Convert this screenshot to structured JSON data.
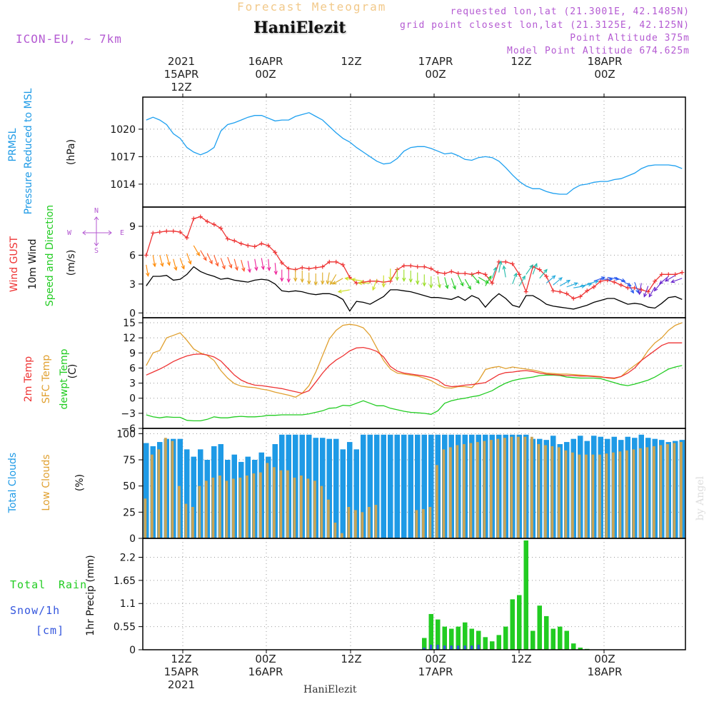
{
  "header": {
    "subtitle": "Forecast Meteogram",
    "station": "HaniElezit",
    "model": "ICON-EU, ~ 7km",
    "requested": "requested lon,lat (21.3001E, 42.1485N)",
    "gridpoint": "grid point closest lon,lat (21.3125E, 42.125N)",
    "point_alt": "Point Altitude 375m",
    "model_alt": "Model Point Altitude 674.625m",
    "footer": "HaniElezit",
    "credit": "by Angel"
  },
  "top_time_labels": [
    {
      "l1": "2021",
      "l2": "15APR",
      "l3": "12Z"
    },
    {
      "l1": "",
      "l2": "16APR",
      "l3": "00Z"
    },
    {
      "l1": "",
      "l2": "",
      "l3": "12Z"
    },
    {
      "l1": "",
      "l2": "17APR",
      "l3": "00Z"
    },
    {
      "l1": "",
      "l2": "",
      "l3": "12Z"
    },
    {
      "l1": "",
      "l2": "18APR",
      "l3": "00Z"
    }
  ],
  "bottom_time_labels": [
    {
      "l1": "12Z",
      "l2": "15APR",
      "l3": "2021"
    },
    {
      "l1": "00Z",
      "l2": "16APR",
      "l3": ""
    },
    {
      "l1": "12Z",
      "l2": "",
      "l3": ""
    },
    {
      "l1": "00Z",
      "l2": "17APR",
      "l3": ""
    },
    {
      "l1": "12Z",
      "l2": "",
      "l3": ""
    },
    {
      "l1": "00Z",
      "l2": "18APR",
      "l3": ""
    }
  ],
  "panel_labels": {
    "prmsl": [
      "PRMSL",
      "Pressure Reduced to MSL",
      "(hPa)"
    ],
    "wind": [
      "Wind GUST",
      "10m Wind",
      "Speed and Direction",
      "(m/s)"
    ],
    "compass": {
      "n": "N",
      "s": "S",
      "w": "W",
      "e": "E"
    },
    "temp": [
      "2m Temp",
      "SFC Temp",
      "dewpt Temp",
      "(C)"
    ],
    "clouds": [
      "Total Clouds",
      "Low Clouds",
      "(%)"
    ],
    "precip": [
      "Total",
      "Rain",
      "Snow/1h",
      "[cm]",
      "1hr Precip (mm)"
    ]
  },
  "colors": {
    "pressure": "#1ea0f0",
    "gust": "#ee3333",
    "wind10m": "#000000",
    "t2m": "#ee3333",
    "tsfc": "#e0a030",
    "dewpt": "#22cc22",
    "total_clouds": "#1e9ae6",
    "low_clouds": "#c8a456",
    "rain": "#22cc22",
    "snow": "#3355dd",
    "label_purple": "#b45ad2",
    "label_blue": "#1e9ae6",
    "label_green": "#22cc22",
    "label_gold": "#e0a030"
  },
  "chart_data": [
    {
      "type": "line",
      "name": "prmsl",
      "x_start": "2021-04-15T06:00Z",
      "x_step_hours": 1,
      "ylim": [
        1011.5,
        1023.5
      ],
      "yticks": [
        1014,
        1017,
        1020
      ],
      "series": [
        {
          "name": "PRMSL",
          "values": [
            1021.0,
            1021.3,
            1021.0,
            1020.5,
            1019.5,
            1019.0,
            1018.0,
            1017.5,
            1017.2,
            1017.5,
            1018.0,
            1019.8,
            1020.5,
            1020.7,
            1021.0,
            1021.3,
            1021.5,
            1021.5,
            1021.2,
            1020.9,
            1021.0,
            1021.0,
            1021.4,
            1021.6,
            1021.8,
            1021.4,
            1021.0,
            1020.3,
            1019.6,
            1019.0,
            1018.6,
            1018.0,
            1017.5,
            1017.0,
            1016.5,
            1016.2,
            1016.3,
            1016.8,
            1017.6,
            1018.0,
            1018.1,
            1018.1,
            1017.9,
            1017.6,
            1017.3,
            1017.4,
            1017.1,
            1016.7,
            1016.6,
            1016.9,
            1017.0,
            1016.9,
            1016.5,
            1015.8,
            1015.0,
            1014.3,
            1013.8,
            1013.5,
            1013.5,
            1013.2,
            1013.0,
            1012.9,
            1012.9,
            1013.5,
            1013.9,
            1014.0,
            1014.2,
            1014.3,
            1014.3,
            1014.5,
            1014.6,
            1014.9,
            1015.2,
            1015.7,
            1016.0,
            1016.1,
            1016.1,
            1016.1,
            1016.0,
            1015.7
          ]
        }
      ]
    },
    {
      "type": "line",
      "name": "wind",
      "x_start": "2021-04-15T06:00Z",
      "x_step_hours": 1,
      "ylim": [
        -0.5,
        11
      ],
      "yticks": [
        0,
        3,
        6,
        9
      ],
      "series": [
        {
          "name": "Wind GUST",
          "values": [
            6.0,
            8.3,
            8.4,
            8.5,
            8.5,
            8.4,
            7.8,
            9.8,
            10.0,
            9.5,
            9.2,
            8.8,
            7.7,
            7.5,
            7.2,
            7.0,
            6.9,
            7.2,
            7.0,
            6.3,
            5.2,
            4.6,
            4.5,
            4.7,
            4.6,
            4.7,
            4.8,
            5.3,
            5.3,
            5.0,
            3.7,
            3.1,
            3.2,
            3.3,
            3.3,
            3.2,
            3.3,
            4.5,
            4.9,
            4.9,
            4.8,
            4.8,
            4.6,
            4.2,
            4.1,
            4.3,
            4.1,
            4.1,
            4.0,
            4.2,
            4.0,
            3.1,
            5.3,
            5.3,
            5.1,
            4.0,
            2.2,
            4.8,
            4.5,
            3.8,
            2.3,
            2.2,
            2.0,
            1.5,
            1.7,
            2.3,
            2.7,
            3.3,
            3.4,
            3.2,
            2.9,
            2.6,
            2.6,
            2.4,
            2.2,
            3.3,
            4.0,
            4.0,
            4.0,
            4.2
          ]
        },
        {
          "name": "10m Wind",
          "values": [
            2.8,
            3.8,
            3.8,
            3.9,
            3.4,
            3.5,
            4.0,
            4.8,
            4.3,
            4.0,
            3.8,
            3.5,
            3.6,
            3.4,
            3.3,
            3.2,
            3.4,
            3.5,
            3.4,
            3.0,
            2.3,
            2.2,
            2.3,
            2.2,
            2.0,
            1.9,
            2.0,
            2.0,
            1.8,
            1.4,
            0.2,
            1.2,
            1.1,
            0.9,
            1.3,
            1.7,
            2.4,
            2.4,
            2.3,
            2.2,
            2.0,
            1.8,
            1.6,
            1.6,
            1.5,
            1.4,
            1.7,
            1.3,
            1.8,
            1.5,
            0.6,
            1.4,
            2.0,
            1.5,
            0.8,
            0.6,
            1.8,
            1.8,
            1.4,
            0.9,
            0.7,
            0.6,
            0.5,
            0.4,
            0.6,
            0.8,
            1.1,
            1.3,
            1.5,
            1.5,
            1.2,
            0.9,
            1.0,
            0.9,
            0.6,
            0.5,
            1.0,
            1.6,
            1.7,
            1.4
          ]
        }
      ],
      "wind_dir_deg": [
        350,
        350,
        345,
        345,
        345,
        340,
        340,
        330,
        330,
        335,
        340,
        340,
        340,
        345,
        345,
        350,
        350,
        350,
        355,
        355,
        0,
        0,
        0,
        0,
        0,
        0,
        0,
        10,
        30,
        60,
        80,
        100,
        100,
        90,
        20,
        0,
        0,
        0,
        0,
        0,
        0,
        0,
        0,
        350,
        345,
        340,
        335,
        330,
        320,
        300,
        210,
        200,
        190,
        170,
        200,
        210,
        215,
        200,
        220,
        230,
        230,
        240,
        250,
        260,
        260,
        255,
        250,
        270,
        280,
        290,
        300,
        330,
        340,
        10,
        20,
        30,
        40,
        50,
        60,
        70
      ]
    },
    {
      "type": "line",
      "name": "temperature",
      "x_start": "2021-04-15T06:00Z",
      "x_step_hours": 1,
      "ylim": [
        -6,
        16
      ],
      "yticks": [
        -6,
        -3,
        0,
        3,
        6,
        9,
        12,
        15
      ],
      "series": [
        {
          "name": "2m Temp",
          "values": [
            4.6,
            5.2,
            5.8,
            6.5,
            7.3,
            7.9,
            8.4,
            8.7,
            8.8,
            8.6,
            8.2,
            7.4,
            6.0,
            4.6,
            3.6,
            3.0,
            2.6,
            2.5,
            2.3,
            2.1,
            1.9,
            1.6,
            1.3,
            1.0,
            1.5,
            3.2,
            5.0,
            6.5,
            7.6,
            8.4,
            9.4,
            10.0,
            10.1,
            9.8,
            9.3,
            8.2,
            6.3,
            5.4,
            5.0,
            4.8,
            4.6,
            4.4,
            4.1,
            3.6,
            2.6,
            2.3,
            2.4,
            2.6,
            2.7,
            2.9,
            3.1,
            3.9,
            4.7,
            5.1,
            5.2,
            5.4,
            5.5,
            5.3,
            5.0,
            4.8,
            4.7,
            4.6,
            4.5,
            4.5,
            4.4,
            4.4,
            4.3,
            4.2,
            4.1,
            4.0,
            4.3,
            5.0,
            6.0,
            7.5,
            8.5,
            9.5,
            10.5,
            11.0,
            11.0,
            11.0
          ]
        },
        {
          "name": "SFC Temp",
          "values": [
            6.5,
            9.0,
            9.5,
            12.0,
            12.5,
            13.0,
            11.5,
            9.8,
            9.0,
            8.5,
            7.5,
            5.5,
            4.0,
            2.9,
            2.4,
            2.2,
            2.1,
            1.8,
            1.6,
            1.2,
            0.9,
            0.6,
            0.2,
            1.0,
            2.5,
            5.2,
            8.5,
            11.8,
            13.5,
            14.5,
            14.7,
            14.5,
            14.0,
            12.5,
            10.0,
            7.5,
            5.8,
            5.0,
            4.8,
            4.6,
            4.4,
            4.0,
            3.5,
            2.7,
            2.1,
            2.0,
            2.3,
            2.3,
            2.1,
            3.5,
            5.7,
            6.1,
            6.3,
            5.9,
            6.2,
            6.0,
            5.8,
            5.6,
            5.3,
            5.0,
            4.9,
            4.8,
            4.8,
            4.7,
            4.6,
            4.5,
            4.4,
            4.3,
            4.0,
            3.9,
            4.3,
            5.5,
            6.5,
            7.5,
            9.5,
            11.0,
            12.0,
            13.5,
            14.5,
            15.0
          ]
        },
        {
          "name": "dewpt Temp",
          "values": [
            -3.3,
            -3.7,
            -3.9,
            -3.7,
            -3.8,
            -3.8,
            -4.4,
            -4.5,
            -4.5,
            -4.2,
            -3.7,
            -3.9,
            -3.9,
            -3.7,
            -3.6,
            -3.7,
            -3.7,
            -3.6,
            -3.4,
            -3.4,
            -3.3,
            -3.3,
            -3.3,
            -3.3,
            -3.1,
            -2.8,
            -2.5,
            -2.0,
            -1.9,
            -1.4,
            -1.5,
            -1.0,
            -0.5,
            -1.0,
            -1.5,
            -1.5,
            -2.0,
            -2.3,
            -2.6,
            -2.8,
            -2.9,
            -3.0,
            -3.2,
            -2.5,
            -1.0,
            -0.5,
            -0.2,
            0.0,
            0.3,
            0.5,
            1.0,
            1.5,
            2.3,
            3.0,
            3.5,
            3.8,
            4.0,
            4.2,
            4.5,
            4.6,
            4.6,
            4.5,
            4.2,
            4.1,
            4.0,
            4.0,
            4.0,
            3.9,
            3.5,
            3.1,
            2.7,
            2.5,
            2.8,
            3.2,
            3.6,
            4.2,
            5.0,
            5.8,
            6.2,
            6.5
          ]
        }
      ]
    },
    {
      "type": "bar",
      "name": "clouds",
      "x_start": "2021-04-15T06:00Z",
      "x_step_hours": 1,
      "ylim": [
        0,
        105
      ],
      "yticks": [
        0,
        25,
        50,
        75,
        100
      ],
      "series": [
        {
          "name": "Total Clouds",
          "values": [
            91,
            88,
            92,
            95,
            95,
            95,
            85,
            78,
            85,
            75,
            88,
            90,
            75,
            80,
            73,
            78,
            75,
            82,
            78,
            90,
            99,
            99,
            99,
            99,
            99,
            96,
            96,
            95,
            95,
            85,
            92,
            85,
            99,
            99,
            99,
            99,
            99,
            99,
            99,
            99,
            99,
            99,
            99,
            99,
            99,
            99,
            99,
            99,
            99,
            99,
            99,
            99,
            99,
            99,
            99,
            99,
            99,
            95,
            95,
            94,
            98,
            90,
            92,
            95,
            98,
            93,
            98,
            97,
            95,
            97,
            94,
            97,
            96,
            99,
            96,
            95,
            94,
            92,
            93,
            94
          ]
        },
        {
          "name": "Low Clouds",
          "values": [
            38,
            80,
            85,
            96,
            93,
            50,
            33,
            30,
            50,
            55,
            58,
            60,
            55,
            57,
            58,
            60,
            62,
            63,
            72,
            68,
            65,
            65,
            58,
            60,
            57,
            55,
            50,
            37,
            15,
            5,
            30,
            27,
            25,
            30,
            32,
            0,
            0,
            0,
            0,
            0,
            27,
            28,
            30,
            70,
            85,
            87,
            89,
            90,
            91,
            92,
            93,
            94,
            95,
            96,
            97,
            97,
            97,
            97,
            90,
            89,
            88,
            87,
            84,
            82,
            80,
            80,
            80,
            80,
            81,
            82,
            83,
            84,
            85,
            86,
            87,
            88,
            89,
            90,
            91,
            92
          ]
        }
      ]
    },
    {
      "type": "bar",
      "name": "precipitation",
      "x_start": "2021-04-15T06:00Z",
      "x_step_hours": 1,
      "ylim": [
        0,
        2.65
      ],
      "yticks": [
        0,
        0.55,
        1.1,
        1.65,
        2.2
      ],
      "series": [
        {
          "name": "Total Rain",
          "values": [
            0,
            0,
            0,
            0,
            0,
            0,
            0,
            0,
            0,
            0,
            0,
            0,
            0,
            0,
            0,
            0,
            0,
            0,
            0,
            0,
            0,
            0,
            0,
            0,
            0,
            0,
            0,
            0,
            0,
            0,
            0,
            0,
            0,
            0,
            0,
            0,
            0,
            0,
            0,
            0,
            0,
            0.28,
            0.85,
            0.72,
            0.55,
            0.5,
            0.55,
            0.65,
            0.5,
            0.45,
            0.3,
            0.2,
            0.35,
            0.55,
            1.2,
            1.3,
            2.6,
            0.45,
            1.05,
            0.8,
            0.5,
            0.55,
            0.45,
            0.15,
            0.05,
            0.02,
            0,
            0,
            0,
            0,
            0,
            0,
            0,
            0,
            0,
            0,
            0,
            0,
            0,
            0
          ]
        },
        {
          "name": "Snow/1h",
          "values": [
            0,
            0,
            0,
            0,
            0,
            0,
            0,
            0,
            0,
            0,
            0,
            0,
            0,
            0,
            0,
            0,
            0,
            0,
            0,
            0,
            0,
            0,
            0,
            0,
            0,
            0,
            0,
            0,
            0,
            0,
            0,
            0,
            0,
            0,
            0,
            0,
            0,
            0,
            0,
            0,
            0,
            0.05,
            0.12,
            0.12,
            0.1,
            0.1,
            0.1,
            0.1,
            0.1,
            0.12,
            0,
            0,
            0,
            0,
            0,
            0,
            0,
            0,
            0,
            0,
            0,
            0,
            0,
            0,
            0,
            0,
            0,
            0,
            0,
            0,
            0,
            0,
            0,
            0,
            0,
            0,
            0,
            0,
            0,
            0
          ]
        }
      ]
    }
  ]
}
